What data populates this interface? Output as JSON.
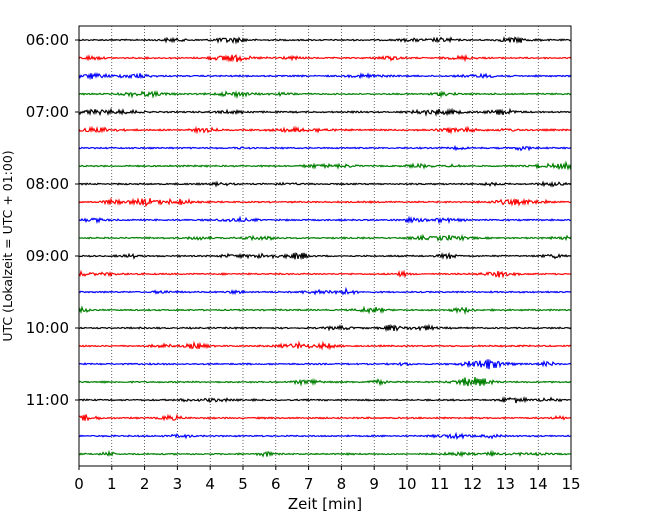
{
  "chart_data": {
    "type": "line",
    "title": "",
    "xlabel": "Zeit  [min]",
    "ylabel": "UTC (Lokalzeit = UTC + 01:00)",
    "xlim": [
      0,
      15
    ],
    "x_ticks": [
      "0",
      "1",
      "2",
      "3",
      "4",
      "5",
      "6",
      "7",
      "8",
      "9",
      "10",
      "11",
      "12",
      "13",
      "14",
      "15"
    ],
    "y_tick_labels": [
      "06:00",
      "07:00",
      "08:00",
      "09:00",
      "10:00",
      "11:00"
    ],
    "y_tick_rows": [
      0,
      4,
      8,
      12,
      16,
      20
    ],
    "row_start": "06:00",
    "row_interval_min": 15,
    "row_count": 24,
    "color_cycle": [
      "#000000",
      "#ff0000",
      "#0000ff",
      "#008000"
    ],
    "grid": "vertical dotted",
    "legend": "none"
  }
}
